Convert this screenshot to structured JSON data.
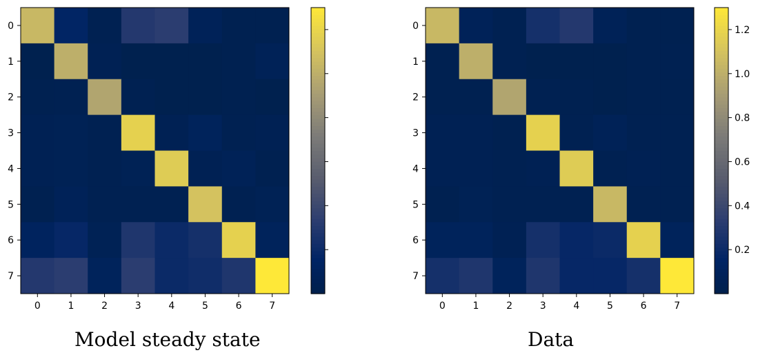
{
  "chart_data": [
    {
      "type": "heatmap",
      "title": "Model steady state",
      "colormap": "cividis",
      "x_ticks": [
        "0",
        "1",
        "2",
        "3",
        "4",
        "5",
        "6",
        "7"
      ],
      "y_ticks": [
        "0",
        "1",
        "2",
        "3",
        "4",
        "5",
        "6",
        "7"
      ],
      "colorbar_range": [
        0.0,
        1.3
      ],
      "colorbar_tick_labels": [],
      "values": [
        [
          1.05,
          0.16,
          0.04,
          0.3,
          0.33,
          0.08,
          0.03,
          0.03
        ],
        [
          0.02,
          1.0,
          0.05,
          0.02,
          0.02,
          0.02,
          0.03,
          0.07
        ],
        [
          0.03,
          0.04,
          0.95,
          0.04,
          0.02,
          0.02,
          0.03,
          0.02
        ],
        [
          0.05,
          0.06,
          0.04,
          1.18,
          0.05,
          0.1,
          0.04,
          0.05
        ],
        [
          0.05,
          0.06,
          0.04,
          0.06,
          1.15,
          0.05,
          0.07,
          0.03
        ],
        [
          0.03,
          0.08,
          0.04,
          0.04,
          0.04,
          1.1,
          0.04,
          0.06
        ],
        [
          0.12,
          0.18,
          0.06,
          0.28,
          0.2,
          0.24,
          1.18,
          0.1
        ],
        [
          0.3,
          0.33,
          0.1,
          0.33,
          0.2,
          0.22,
          0.28,
          1.3
        ]
      ]
    },
    {
      "type": "heatmap",
      "title": "Data",
      "colormap": "cividis",
      "x_ticks": [
        "0",
        "1",
        "2",
        "3",
        "4",
        "5",
        "6",
        "7"
      ],
      "y_ticks": [
        "0",
        "1",
        "2",
        "3",
        "4",
        "5",
        "6",
        "7"
      ],
      "colorbar_range": [
        0.0,
        1.3
      ],
      "colorbar_tick_labels": [
        "0.2",
        "0.4",
        "0.6",
        "0.8",
        "1.0",
        "1.2"
      ],
      "colorbar_tick_values": [
        0.2,
        0.4,
        0.6,
        0.8,
        1.0,
        1.2
      ],
      "values": [
        [
          1.05,
          0.08,
          0.04,
          0.24,
          0.3,
          0.07,
          0.03,
          0.03
        ],
        [
          0.03,
          1.0,
          0.04,
          0.02,
          0.02,
          0.02,
          0.03,
          0.04
        ],
        [
          0.03,
          0.03,
          0.95,
          0.04,
          0.03,
          0.02,
          0.03,
          0.03
        ],
        [
          0.05,
          0.05,
          0.03,
          1.18,
          0.04,
          0.07,
          0.04,
          0.04
        ],
        [
          0.05,
          0.05,
          0.04,
          0.05,
          1.15,
          0.04,
          0.05,
          0.04
        ],
        [
          0.03,
          0.06,
          0.04,
          0.04,
          0.04,
          1.05,
          0.04,
          0.04
        ],
        [
          0.1,
          0.1,
          0.05,
          0.24,
          0.18,
          0.2,
          1.18,
          0.1
        ],
        [
          0.24,
          0.28,
          0.1,
          0.28,
          0.18,
          0.18,
          0.24,
          1.3
        ]
      ]
    }
  ]
}
